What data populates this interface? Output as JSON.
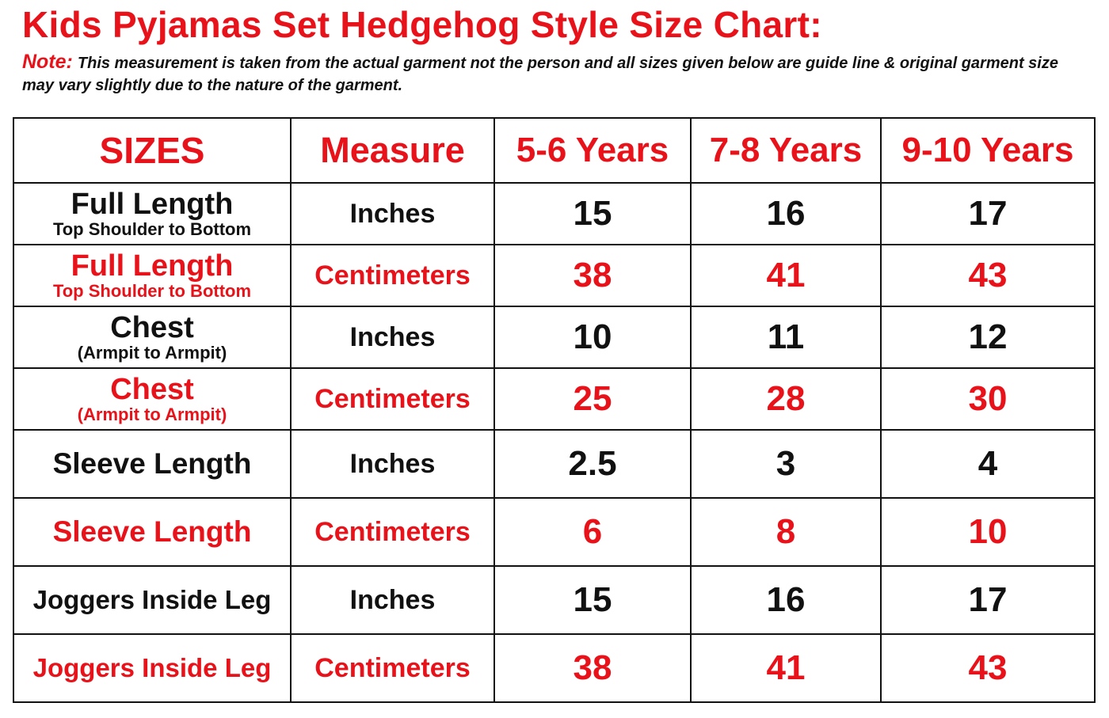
{
  "title": "Kids Pyjamas Set Hedgehog Style Size Chart:",
  "note": {
    "label": "Note:",
    "text": "This measurement is taken from the actual garment not the person and all sizes given below are guide line & original garment size may vary slightly due to the nature of the garment."
  },
  "colors": {
    "accent_red": "#e8131a",
    "text_black": "#111111"
  },
  "table": {
    "headers": [
      "SIZES",
      "Measure",
      "5-6 Years",
      "7-8 Years",
      "9-10 Years"
    ],
    "rows": [
      {
        "label": "Full Length",
        "sublabel": "Top Shoulder to Bottom",
        "measure": "Inches",
        "values": [
          "15",
          "16",
          "17"
        ],
        "color": "black"
      },
      {
        "label": "Full Length",
        "sublabel": "Top Shoulder to Bottom",
        "measure": "Centimeters",
        "values": [
          "38",
          "41",
          "43"
        ],
        "color": "red"
      },
      {
        "label": "Chest",
        "sublabel": "(Armpit to Armpit)",
        "measure": "Inches",
        "values": [
          "10",
          "11",
          "12"
        ],
        "color": "black"
      },
      {
        "label": "Chest",
        "sublabel": "(Armpit to Armpit)",
        "measure": "Centimeters",
        "values": [
          "25",
          "28",
          "30"
        ],
        "color": "red"
      },
      {
        "label": "Sleeve Length",
        "sublabel": "",
        "measure": "Inches",
        "values": [
          "2.5",
          "3",
          "4"
        ],
        "color": "black"
      },
      {
        "label": "Sleeve Length",
        "sublabel": "",
        "measure": "Centimeters",
        "values": [
          "6",
          "8",
          "10"
        ],
        "color": "red"
      },
      {
        "label": "Joggers Inside Leg",
        "sublabel": "",
        "measure": "Inches",
        "values": [
          "15",
          "16",
          "17"
        ],
        "color": "black"
      },
      {
        "label": "Joggers Inside Leg",
        "sublabel": "",
        "measure": "Centimeters",
        "values": [
          "38",
          "41",
          "43"
        ],
        "color": "red"
      }
    ]
  }
}
